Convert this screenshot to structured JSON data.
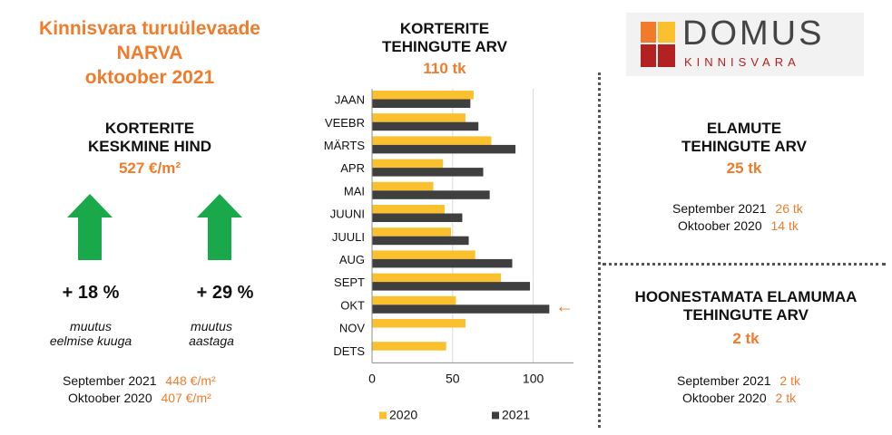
{
  "left": {
    "title_lines": [
      "Kinnisvara turuülevaade",
      "NARVA",
      "oktoober 2021"
    ],
    "price_heading_lines": [
      "KORTERITE",
      "KESKMINE HIND"
    ],
    "price_value": "527 €/m²",
    "change_month": {
      "value": "+ 18 %",
      "note_lines": [
        "muutus",
        "eelmise kuuga"
      ]
    },
    "change_year": {
      "value": "+ 29 %",
      "note_lines": [
        "muutus",
        "aastaga"
      ]
    },
    "compare": [
      {
        "label": "September 2021",
        "value": "448 €/m²"
      },
      {
        "label": "Oktoober 2020",
        "value": "407 €/m²"
      }
    ],
    "arrow_color": "#19a84a"
  },
  "chart_header": {
    "title_lines": [
      "KORTERITE",
      "TEHINGUTE ARV"
    ],
    "value": "110 tk"
  },
  "chart_data": {
    "type": "bar",
    "orientation": "horizontal",
    "categories": [
      "JAAN",
      "VEEBR",
      "MÄRTS",
      "APR",
      "MAI",
      "JUUNI",
      "JUULI",
      "AUG",
      "SEPT",
      "OKT",
      "NOV",
      "DETS"
    ],
    "series": [
      {
        "name": "2020",
        "color": "#fbc02d",
        "values": [
          63,
          58,
          74,
          44,
          38,
          45,
          49,
          64,
          80,
          52,
          58,
          46
        ]
      },
      {
        "name": "2021",
        "color": "#3f3f3f",
        "values": [
          61,
          66,
          89,
          69,
          73,
          56,
          60,
          87,
          98,
          110,
          null,
          null
        ]
      }
    ],
    "xlim": [
      0,
      125
    ],
    "xticks": [
      0,
      50,
      100
    ],
    "grid": true,
    "legend": "bottom",
    "highlight_category": "OKT",
    "highlight_marker": "←",
    "highlight_color": "#f07c2b"
  },
  "right_top": {
    "heading_lines": [
      "ELAMUTE",
      "TEHINGUTE ARV"
    ],
    "value": "25 tk",
    "compare": [
      {
        "label": "September 2021",
        "value": "26 tk"
      },
      {
        "label": "Oktoober 2020",
        "value": "14 tk"
      }
    ]
  },
  "right_bottom": {
    "heading_lines": [
      "HOONESTAMATA ELAMUMAA",
      "TEHINGUTE ARV"
    ],
    "value": "2 tk",
    "compare": [
      {
        "label": "September 2021",
        "value": "2 tk"
      },
      {
        "label": "Oktoober 2020",
        "value": "2 tk"
      }
    ]
  },
  "logo": {
    "name": "DOMUS",
    "subtitle": "KINNISVARA",
    "colors": [
      "#f07c2b",
      "#fbc02d",
      "#b22222",
      "#b22222"
    ]
  }
}
